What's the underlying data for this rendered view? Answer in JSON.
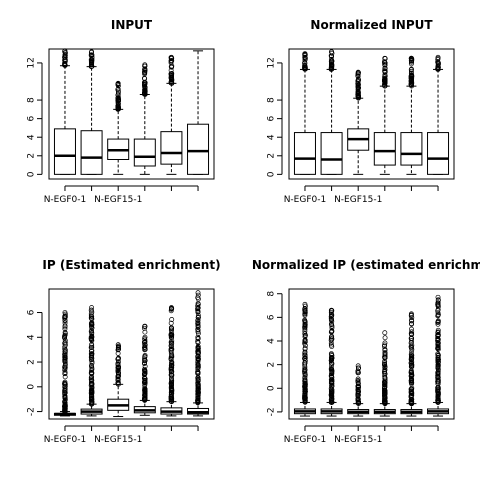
{
  "chart_data": [
    {
      "type": "box",
      "title": "INPUT",
      "ylim": [
        -0.5,
        13.5
      ],
      "yticks": [
        0,
        2,
        4,
        6,
        8,
        12
      ],
      "x_tick_labels": [
        "N-EGF0-1",
        "N-EGF15-1"
      ],
      "x_tick_positions": [
        1,
        3
      ],
      "boxes": [
        {
          "q1": 0.0,
          "median": 2.0,
          "q3": 4.9,
          "wlo": 0.0,
          "whi": 11.7,
          "out_lo": null,
          "out_hi": [
            11.7,
            13.3
          ]
        },
        {
          "q1": 0.0,
          "median": 1.8,
          "q3": 4.7,
          "wlo": 0.0,
          "whi": 11.6,
          "out_lo": null,
          "out_hi": [
            11.6,
            13.2
          ]
        },
        {
          "q1": 1.6,
          "median": 2.6,
          "q3": 3.8,
          "wlo": 0.0,
          "whi": 7.0,
          "out_lo": null,
          "out_hi": [
            7.0,
            9.8
          ]
        },
        {
          "q1": 0.9,
          "median": 1.9,
          "q3": 3.8,
          "wlo": 0.0,
          "whi": 8.6,
          "out_lo": null,
          "out_hi": [
            8.6,
            11.8
          ]
        },
        {
          "q1": 1.1,
          "median": 2.3,
          "q3": 4.6,
          "wlo": 0.0,
          "whi": 9.8,
          "out_lo": null,
          "out_hi": [
            9.8,
            12.6
          ]
        },
        {
          "q1": 0.0,
          "median": 2.5,
          "q3": 5.4,
          "wlo": 0.0,
          "whi": 13.3,
          "out_lo": null,
          "out_hi": null
        }
      ]
    },
    {
      "type": "box",
      "title": "Normalized INPUT",
      "ylim": [
        -0.5,
        13.5
      ],
      "yticks": [
        0,
        2,
        4,
        6,
        8,
        12
      ],
      "x_tick_labels": [
        "N-EGF0-1",
        "N-EGF15-1"
      ],
      "x_tick_positions": [
        1,
        3
      ],
      "boxes": [
        {
          "q1": 0.0,
          "median": 1.7,
          "q3": 4.5,
          "wlo": 0.0,
          "whi": 11.3,
          "out_lo": null,
          "out_hi": [
            11.3,
            13.0
          ]
        },
        {
          "q1": 0.0,
          "median": 1.6,
          "q3": 4.5,
          "wlo": 0.0,
          "whi": 11.3,
          "out_lo": null,
          "out_hi": [
            11.3,
            13.2
          ]
        },
        {
          "q1": 2.6,
          "median": 3.8,
          "q3": 4.9,
          "wlo": 0.0,
          "whi": 8.2,
          "out_lo": null,
          "out_hi": [
            8.2,
            11.0
          ]
        },
        {
          "q1": 1.0,
          "median": 2.5,
          "q3": 4.5,
          "wlo": 0.0,
          "whi": 9.5,
          "out_lo": null,
          "out_hi": [
            9.5,
            12.5
          ]
        },
        {
          "q1": 1.0,
          "median": 2.2,
          "q3": 4.5,
          "wlo": 0.0,
          "whi": 9.5,
          "out_lo": null,
          "out_hi": [
            9.5,
            12.5
          ]
        },
        {
          "q1": 0.0,
          "median": 1.7,
          "q3": 4.5,
          "wlo": 0.0,
          "whi": 11.3,
          "out_lo": null,
          "out_hi": [
            11.3,
            12.6
          ]
        }
      ]
    },
    {
      "type": "box",
      "title": "IP (Estimated enrichment)",
      "ylim": [
        -2.6,
        7.9
      ],
      "yticks": [
        -2,
        0,
        2,
        4,
        6
      ],
      "x_tick_labels": [
        "N-EGF0-1",
        "N-EGF15-1"
      ],
      "x_tick_positions": [
        1,
        3
      ],
      "boxes": [
        {
          "q1": -2.3,
          "median": -2.2,
          "q3": -2.15,
          "wlo": -2.35,
          "whi": -2.0,
          "out_lo": null,
          "out_hi": [
            -2.0,
            6.0
          ]
        },
        {
          "q1": -2.2,
          "median": -2.0,
          "q3": -1.8,
          "wlo": -2.35,
          "whi": -1.4,
          "out_lo": null,
          "out_hi": [
            -1.4,
            6.4
          ]
        },
        {
          "q1": -1.9,
          "median": -1.5,
          "q3": -1.0,
          "wlo": -2.4,
          "whi": 0.2,
          "out_lo": null,
          "out_hi": [
            0.2,
            3.4
          ]
        },
        {
          "q1": -2.1,
          "median": -1.9,
          "q3": -1.6,
          "wlo": -2.3,
          "whi": -1.1,
          "out_lo": null,
          "out_hi": [
            -1.1,
            4.9
          ]
        },
        {
          "q1": -2.2,
          "median": -2.0,
          "q3": -1.7,
          "wlo": -2.35,
          "whi": -1.2,
          "out_lo": null,
          "out_hi": [
            -1.2,
            6.4
          ]
        },
        {
          "q1": -2.2,
          "median": -2.05,
          "q3": -1.75,
          "wlo": -2.35,
          "whi": -1.3,
          "out_lo": null,
          "out_hi": [
            -1.3,
            7.6
          ]
        }
      ]
    },
    {
      "type": "box",
      "title": "Normalized IP (estimated enrichme",
      "ylim": [
        -2.6,
        8.4
      ],
      "yticks": [
        -2,
        0,
        2,
        4,
        6,
        8
      ],
      "x_tick_labels": [
        "N-EGF0-1",
        "N-EGF15-1"
      ],
      "x_tick_positions": [
        1,
        3
      ],
      "boxes": [
        {
          "q1": -2.15,
          "median": -1.95,
          "q3": -1.75,
          "wlo": -2.35,
          "whi": -1.2,
          "out_lo": null,
          "out_hi": [
            -1.2,
            7.1
          ]
        },
        {
          "q1": -2.15,
          "median": -1.95,
          "q3": -1.75,
          "wlo": -2.35,
          "whi": -1.2,
          "out_lo": null,
          "out_hi": [
            -1.2,
            6.6
          ]
        },
        {
          "q1": -2.15,
          "median": -2.0,
          "q3": -1.8,
          "wlo": -2.35,
          "whi": -1.3,
          "out_lo": null,
          "out_hi": [
            -1.3,
            1.9
          ]
        },
        {
          "q1": -2.15,
          "median": -2.0,
          "q3": -1.8,
          "wlo": -2.35,
          "whi": -1.3,
          "out_lo": null,
          "out_hi": [
            -1.3,
            4.7
          ]
        },
        {
          "q1": -2.15,
          "median": -2.0,
          "q3": -1.8,
          "wlo": -2.35,
          "whi": -1.3,
          "out_lo": null,
          "out_hi": [
            -1.3,
            6.3
          ]
        },
        {
          "q1": -2.15,
          "median": -1.95,
          "q3": -1.75,
          "wlo": -2.35,
          "whi": -1.2,
          "out_lo": null,
          "out_hi": [
            -1.2,
            7.7
          ]
        }
      ]
    }
  ]
}
